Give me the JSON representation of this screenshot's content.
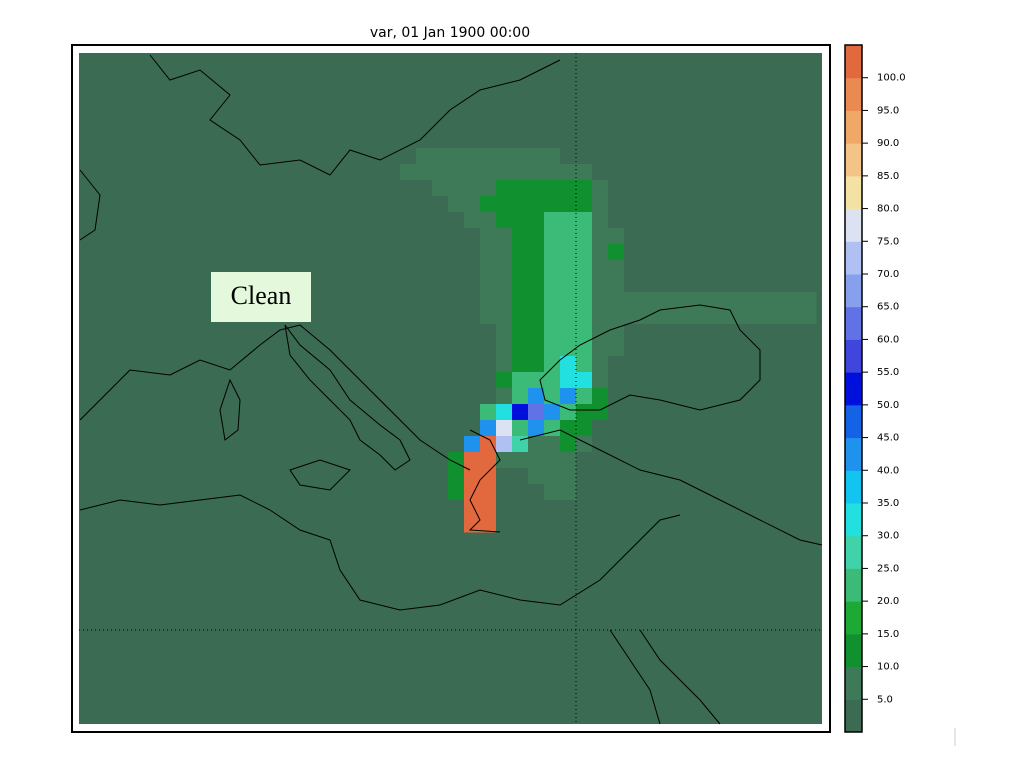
{
  "chart_data": {
    "type": "heatmap",
    "title": "var, 01 Jan 1900 00:00",
    "annotation": "Clean",
    "grid": [
      [
        0,
        7,
        7,
        7,
        7,
        7,
        7,
        7,
        7,
        7,
        0,
        0,
        0,
        0,
        0,
        0,
        0,
        0,
        0,
        0,
        0,
        0,
        0,
        0,
        0,
        0
      ],
      [
        7,
        7,
        7,
        7,
        7,
        7,
        7,
        7,
        7,
        7,
        7,
        7,
        0,
        0,
        0,
        0,
        0,
        0,
        0,
        0,
        0,
        0,
        0,
        0,
        0,
        0
      ],
      [
        0,
        0,
        7,
        7,
        7,
        7,
        12,
        12,
        12,
        12,
        12,
        12,
        7,
        0,
        0,
        0,
        0,
        0,
        0,
        0,
        0,
        0,
        0,
        0,
        0,
        0
      ],
      [
        0,
        0,
        0,
        7,
        7,
        12,
        12,
        12,
        12,
        12,
        12,
        12,
        7,
        0,
        0,
        0,
        0,
        0,
        0,
        0,
        0,
        0,
        0,
        0,
        0,
        0
      ],
      [
        0,
        0,
        0,
        0,
        7,
        7,
        12,
        12,
        12,
        22,
        22,
        22,
        7,
        0,
        0,
        0,
        0,
        0,
        0,
        0,
        0,
        0,
        0,
        0,
        0,
        0
      ],
      [
        0,
        0,
        0,
        0,
        0,
        7,
        7,
        12,
        12,
        22,
        22,
        22,
        7,
        7,
        0,
        0,
        0,
        0,
        0,
        0,
        0,
        0,
        0,
        0,
        0,
        0
      ],
      [
        0,
        0,
        0,
        0,
        0,
        7,
        7,
        12,
        12,
        22,
        22,
        22,
        7,
        12,
        0,
        0,
        0,
        0,
        0,
        0,
        0,
        0,
        0,
        0,
        0,
        0
      ],
      [
        0,
        0,
        0,
        0,
        0,
        7,
        7,
        12,
        12,
        22,
        22,
        22,
        7,
        7,
        0,
        0,
        0,
        0,
        0,
        0,
        0,
        0,
        0,
        0,
        0,
        0
      ],
      [
        0,
        0,
        0,
        0,
        0,
        7,
        7,
        12,
        12,
        22,
        22,
        22,
        7,
        7,
        0,
        0,
        0,
        0,
        0,
        0,
        0,
        0,
        0,
        0,
        0,
        0
      ],
      [
        0,
        0,
        0,
        0,
        0,
        7,
        7,
        12,
        12,
        22,
        22,
        22,
        7,
        7,
        7,
        7,
        7,
        7,
        7,
        7,
        7,
        7,
        7,
        7,
        7,
        7
      ],
      [
        0,
        0,
        0,
        0,
        0,
        7,
        7,
        12,
        12,
        22,
        22,
        22,
        7,
        7,
        7,
        7,
        7,
        7,
        7,
        7,
        7,
        7,
        7,
        7,
        7,
        7
      ],
      [
        0,
        0,
        0,
        0,
        0,
        0,
        7,
        12,
        12,
        22,
        22,
        22,
        7,
        7,
        0,
        0,
        0,
        0,
        0,
        0,
        0,
        0,
        0,
        0,
        0,
        0
      ],
      [
        0,
        0,
        0,
        0,
        0,
        0,
        7,
        12,
        12,
        22,
        22,
        22,
        7,
        7,
        0,
        0,
        0,
        0,
        0,
        0,
        0,
        0,
        0,
        0,
        0,
        0
      ],
      [
        0,
        0,
        0,
        0,
        0,
        0,
        7,
        12,
        12,
        22,
        32,
        22,
        7,
        0,
        0,
        0,
        0,
        0,
        0,
        0,
        0,
        0,
        0,
        0,
        0,
        0
      ],
      [
        0,
        0,
        0,
        0,
        0,
        0,
        12,
        22,
        22,
        22,
        32,
        32,
        7,
        0,
        0,
        0,
        0,
        0,
        0,
        0,
        0,
        0,
        0,
        0,
        0,
        0
      ],
      [
        0,
        0,
        0,
        0,
        0,
        0,
        7,
        22,
        40,
        22,
        42,
        22,
        12,
        0,
        0,
        0,
        0,
        0,
        0,
        0,
        0,
        0,
        0,
        0,
        0,
        0
      ],
      [
        0,
        0,
        0,
        0,
        0,
        22,
        34,
        53,
        62,
        42,
        22,
        12,
        12,
        0,
        0,
        0,
        0,
        0,
        0,
        0,
        0,
        0,
        0,
        0,
        0,
        0
      ],
      [
        0,
        0,
        0,
        0,
        0,
        42,
        76,
        22,
        42,
        22,
        12,
        12,
        0,
        0,
        0,
        0,
        0,
        0,
        0,
        0,
        0,
        0,
        0,
        0,
        0,
        0
      ],
      [
        0,
        0,
        0,
        0,
        42,
        100,
        72,
        28,
        7,
        7,
        12,
        7,
        0,
        0,
        0,
        0,
        0,
        0,
        0,
        0,
        0,
        0,
        0,
        0,
        0,
        0
      ],
      [
        0,
        0,
        0,
        12,
        100,
        100,
        7,
        7,
        7,
        7,
        7,
        0,
        0,
        0,
        0,
        0,
        0,
        0,
        0,
        0,
        0,
        0,
        0,
        0,
        0,
        0
      ],
      [
        0,
        0,
        0,
        12,
        100,
        100,
        0,
        0,
        7,
        7,
        7,
        0,
        0,
        0,
        0,
        0,
        0,
        0,
        0,
        0,
        0,
        0,
        0,
        0,
        0,
        0
      ],
      [
        0,
        0,
        0,
        12,
        100,
        100,
        0,
        0,
        0,
        7,
        7,
        0,
        0,
        0,
        0,
        0,
        0,
        0,
        0,
        0,
        0,
        0,
        0,
        0,
        0,
        0
      ],
      [
        0,
        0,
        0,
        0,
        100,
        100,
        0,
        0,
        0,
        0,
        0,
        0,
        0,
        0,
        0,
        0,
        0,
        0,
        0,
        0,
        0,
        0,
        0,
        0,
        0,
        0
      ],
      [
        0,
        0,
        0,
        0,
        100,
        100,
        0,
        0,
        0,
        0,
        0,
        0,
        0,
        0,
        0,
        0,
        0,
        0,
        0,
        0,
        0,
        0,
        0,
        0,
        0,
        0
      ]
    ],
    "colorbar": {
      "ylim": [
        0,
        105
      ],
      "colors": [
        "#3b6b52",
        "#3f7a58",
        "#10902e",
        "#1caa34",
        "#3cba78",
        "#40d2a8",
        "#22e0e0",
        "#12c4f2",
        "#1f92ee",
        "#1462e6",
        "#0010dc",
        "#4046dc",
        "#6072e6",
        "#86a0ee",
        "#b0c0f2",
        "#dce2f2",
        "#f4e2a4",
        "#f2c488",
        "#f0a868",
        "#ea8a52",
        "#e2683e"
      ],
      "yticks": [
        {
          "value": 5,
          "label": "5.0"
        },
        {
          "value": 10,
          "label": "10.0"
        },
        {
          "value": 15,
          "label": "15.0"
        },
        {
          "value": 20,
          "label": "20.0"
        },
        {
          "value": 25,
          "label": "25.0"
        },
        {
          "value": 30,
          "label": "30.0"
        },
        {
          "value": 35,
          "label": "35.0"
        },
        {
          "value": 40,
          "label": "40.0"
        },
        {
          "value": 45,
          "label": "45.0"
        },
        {
          "value": 50,
          "label": "50.0"
        },
        {
          "value": 55,
          "label": "55.0"
        },
        {
          "value": 60,
          "label": "60.0"
        },
        {
          "value": 65,
          "label": "65.0"
        },
        {
          "value": 70,
          "label": "70.0"
        },
        {
          "value": 75,
          "label": "75.0"
        },
        {
          "value": 80,
          "label": "80.0"
        },
        {
          "value": 85,
          "label": "85.0"
        },
        {
          "value": 90,
          "label": "90.0"
        },
        {
          "value": 95,
          "label": "95.0"
        },
        {
          "value": 100,
          "label": "100.0"
        }
      ]
    }
  }
}
